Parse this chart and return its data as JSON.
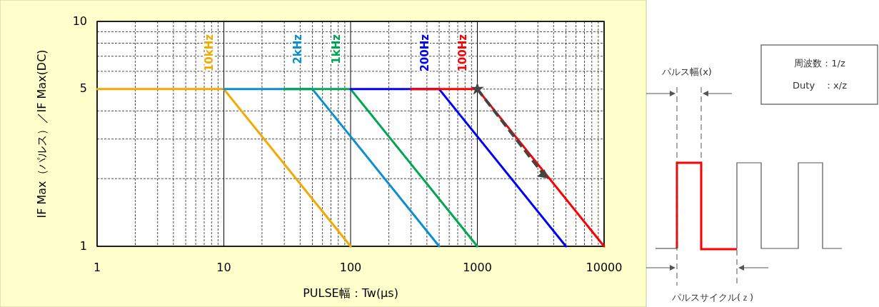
{
  "chart_data": {
    "type": "line",
    "xlabel": "PULSE幅：Tw(µs)",
    "ylabel": "IF Max（パルス）／IF Max(DC)",
    "xlim": [
      1,
      10000
    ],
    "xticks": [
      1,
      10,
      100,
      1000,
      10000
    ],
    "ylim": [
      1,
      10
    ],
    "yticks": [
      1,
      5,
      10
    ],
    "log": "xy",
    "grid": true,
    "marker": "none",
    "line_style": "solid",
    "series": [
      {
        "name": "10kHz",
        "color": "#f5a800",
        "x": [
          1,
          10,
          100
        ],
        "values": [
          5,
          5,
          1
        ]
      },
      {
        "name": "2kHz",
        "color": "#0b8fd1",
        "x": [
          10,
          50,
          500
        ],
        "values": [
          5,
          5,
          1
        ]
      },
      {
        "name": "1kHz",
        "color": "#00a650",
        "x": [
          30,
          100,
          1000
        ],
        "values": [
          5,
          5,
          1
        ]
      },
      {
        "name": "200Hz",
        "color": "#0000ff",
        "x": [
          100,
          500,
          5000
        ],
        "values": [
          5,
          5,
          1
        ]
      },
      {
        "name": "100Hz",
        "color": "#ff0000",
        "x": [
          300,
          1000,
          10000
        ],
        "values": [
          5,
          5,
          1
        ]
      }
    ],
    "annotations": [
      "パルス幅(x)",
      "周波数：1/z",
      "Duty　：x/z",
      "パルスサイクル(ｚ)"
    ]
  }
}
